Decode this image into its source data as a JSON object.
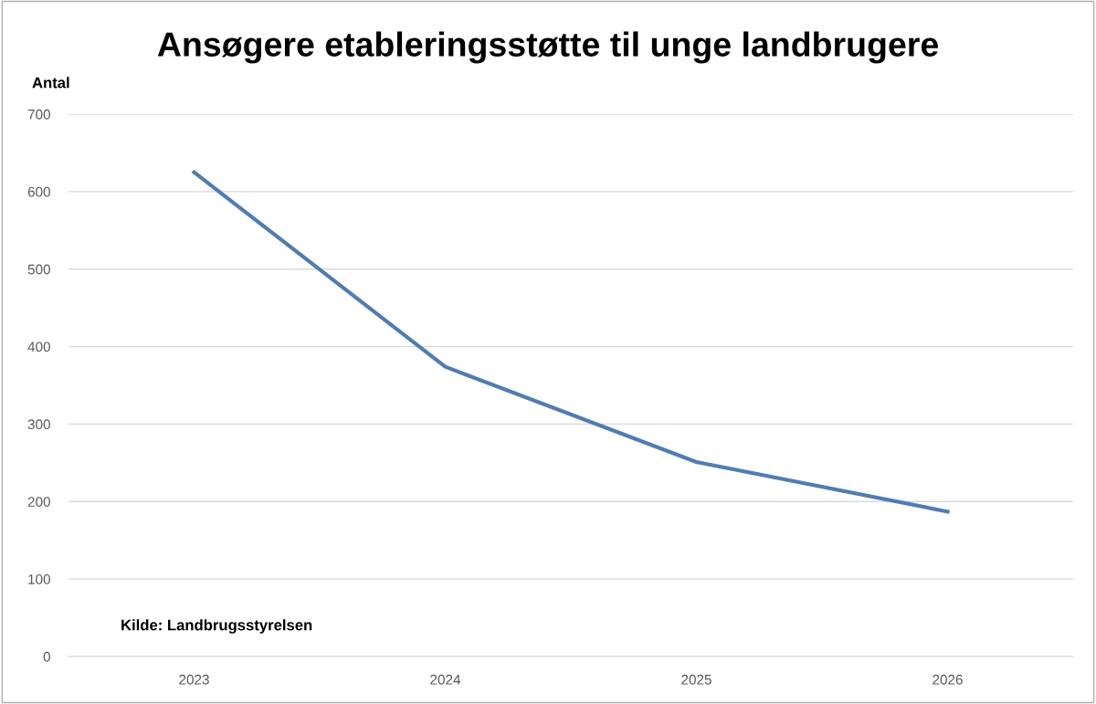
{
  "chart_data": {
    "type": "line",
    "title": "Ansøgere etableringsstøtte til unge landbrugere",
    "ylabel": "Antal",
    "categories": [
      "2023",
      "2024",
      "2025",
      "2026"
    ],
    "series": [
      {
        "color": "#4f7db3",
        "values": [
          625,
          374,
          251,
          187
        ]
      }
    ],
    "ylim": [
      0,
      700
    ],
    "yticks": [
      0,
      100,
      200,
      300,
      400,
      500,
      600,
      700
    ],
    "grid": "y",
    "marker": "none",
    "line_style": "solid",
    "legend": false,
    "annotations": [
      "Kilde: Landbrugsstyrelsen"
    ]
  }
}
